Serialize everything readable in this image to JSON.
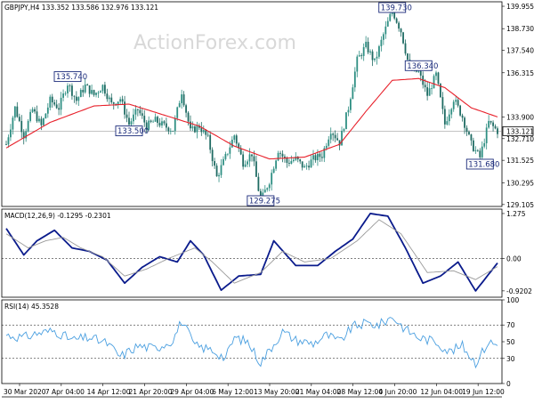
{
  "colors": {
    "bull": "#2f8f83",
    "bear": "#1f6b63",
    "ma": "#e8212b",
    "macd": "#0a1b8c",
    "signal": "#9a9a9a",
    "rsi": "#4a9fe0",
    "levels": "#000000"
  },
  "chart_data": [
    {
      "type": "candlestick",
      "title": "GBPJPY,H4  133.352 133.586 132.976 133.121",
      "watermark": "ActionForex.com",
      "ylim": [
        129.0,
        140.2
      ],
      "y_ticks": [
        "139.955",
        "138.730",
        "137.540",
        "136.315",
        "133.900",
        "132.710",
        "131.525",
        "130.295",
        "129.105"
      ],
      "last_price": "133.121",
      "last_price_value": 133.121,
      "annotations": [
        {
          "label": "139.730",
          "value": 139.73
        },
        {
          "label": "135.740",
          "value": 135.74
        },
        {
          "label": "136.340",
          "value": 136.34
        },
        {
          "label": "133.500",
          "value": 133.5
        },
        {
          "label": "131.680",
          "value": 131.68
        },
        {
          "label": "129.275",
          "value": 129.275
        }
      ],
      "path": [
        [
          0,
          132.4
        ],
        [
          4,
          134.4
        ],
        [
          8,
          132.9
        ],
        [
          12,
          134.3
        ],
        [
          16,
          133.4
        ],
        [
          20,
          134.8
        ],
        [
          24,
          134.4
        ],
        [
          28,
          135.74
        ],
        [
          32,
          134.8
        ],
        [
          36,
          135.6
        ],
        [
          40,
          135.1
        ],
        [
          44,
          135.6
        ],
        [
          48,
          134.6
        ],
        [
          52,
          134.9
        ],
        [
          56,
          133.5
        ],
        [
          60,
          134.3
        ],
        [
          64,
          133.4
        ],
        [
          68,
          133.7
        ],
        [
          72,
          133.4
        ],
        [
          76,
          133.2
        ],
        [
          80,
          135.3
        ],
        [
          84,
          133.1
        ],
        [
          88,
          133.4
        ],
        [
          92,
          132.7
        ],
        [
          96,
          130.6
        ],
        [
          100,
          131.7
        ],
        [
          104,
          132.9
        ],
        [
          108,
          131.4
        ],
        [
          112,
          131.9
        ],
        [
          116,
          129.275
        ],
        [
          120,
          130.4
        ],
        [
          124,
          132.1
        ],
        [
          128,
          131.4
        ],
        [
          132,
          131.6
        ],
        [
          136,
          131.1
        ],
        [
          140,
          131.6
        ],
        [
          144,
          131.8
        ],
        [
          148,
          133.2
        ],
        [
          152,
          132.5
        ],
        [
          156,
          134.4
        ],
        [
          160,
          137.0
        ],
        [
          164,
          137.8
        ],
        [
          168,
          136.9
        ],
        [
          172,
          138.4
        ],
        [
          176,
          139.73
        ],
        [
          180,
          138.6
        ],
        [
          184,
          136.5
        ],
        [
          188,
          136.34
        ],
        [
          192,
          135.1
        ],
        [
          196,
          136.2
        ],
        [
          200,
          133.5
        ],
        [
          204,
          134.9
        ],
        [
          208,
          133.9
        ],
        [
          212,
          132.4
        ],
        [
          216,
          131.68
        ],
        [
          220,
          133.6
        ],
        [
          224,
          133.121
        ]
      ],
      "ma_path": [
        [
          0,
          132.2
        ],
        [
          20,
          133.6
        ],
        [
          40,
          134.5
        ],
        [
          56,
          134.6
        ],
        [
          72,
          134.0
        ],
        [
          88,
          133.4
        ],
        [
          104,
          132.3
        ],
        [
          120,
          131.6
        ],
        [
          136,
          131.7
        ],
        [
          152,
          132.4
        ],
        [
          164,
          134.2
        ],
        [
          176,
          135.9
        ],
        [
          188,
          136.0
        ],
        [
          200,
          135.5
        ],
        [
          212,
          134.4
        ],
        [
          224,
          133.9
        ]
      ]
    },
    {
      "type": "line",
      "title": "MACD(12,26,9) -0.1295 -0.2301",
      "ylim": [
        -1.1,
        1.4
      ],
      "y_ticks": [
        "1.275",
        "0.00",
        "-0.9202"
      ],
      "y_tick_values": [
        1.275,
        0.0,
        -0.9202
      ],
      "series": [
        {
          "name": "MACD",
          "points": [
            [
              0,
              0.85
            ],
            [
              8,
              0.1
            ],
            [
              14,
              0.5
            ],
            [
              22,
              0.8
            ],
            [
              30,
              0.3
            ],
            [
              38,
              0.2
            ],
            [
              46,
              -0.05
            ],
            [
              54,
              -0.7
            ],
            [
              62,
              -0.25
            ],
            [
              70,
              0.05
            ],
            [
              78,
              -0.1
            ],
            [
              84,
              0.5
            ],
            [
              90,
              0.1
            ],
            [
              98,
              -0.9
            ],
            [
              106,
              -0.5
            ],
            [
              116,
              -0.45
            ],
            [
              122,
              0.5
            ],
            [
              132,
              -0.2
            ],
            [
              142,
              -0.2
            ],
            [
              150,
              0.2
            ],
            [
              158,
              0.55
            ],
            [
              166,
              1.275
            ],
            [
              174,
              1.2
            ],
            [
              182,
              0.3
            ],
            [
              190,
              -0.7
            ],
            [
              198,
              -0.5
            ],
            [
              206,
              -0.1
            ],
            [
              214,
              -0.9202
            ],
            [
              224,
              -0.1295
            ]
          ]
        },
        {
          "name": "Signal",
          "points": [
            [
              0,
              0.7
            ],
            [
              10,
              0.3
            ],
            [
              18,
              0.5
            ],
            [
              26,
              0.6
            ],
            [
              34,
              0.3
            ],
            [
              44,
              0.05
            ],
            [
              54,
              -0.5
            ],
            [
              64,
              -0.3
            ],
            [
              74,
              0.0
            ],
            [
              86,
              0.3
            ],
            [
              94,
              -0.1
            ],
            [
              104,
              -0.7
            ],
            [
              116,
              -0.4
            ],
            [
              126,
              0.2
            ],
            [
              136,
              -0.1
            ],
            [
              148,
              0.0
            ],
            [
              160,
              0.5
            ],
            [
              170,
              1.1
            ],
            [
              180,
              0.7
            ],
            [
              192,
              -0.4
            ],
            [
              204,
              -0.35
            ],
            [
              214,
              -0.6
            ],
            [
              224,
              -0.2301
            ]
          ]
        }
      ]
    },
    {
      "type": "line",
      "title": "RSI(14) 45.3528",
      "ylim": [
        0,
        100
      ],
      "y_ticks": [
        "100",
        "70",
        "50",
        "30",
        "0"
      ],
      "y_tick_values": [
        100,
        70,
        50,
        30,
        0
      ],
      "series": [
        {
          "name": "RSI",
          "points": [
            [
              0,
              58
            ],
            [
              8,
              55
            ],
            [
              14,
              60
            ],
            [
              22,
              63
            ],
            [
              30,
              52
            ],
            [
              38,
              55
            ],
            [
              46,
              48
            ],
            [
              52,
              32
            ],
            [
              60,
              45
            ],
            [
              68,
              42
            ],
            [
              76,
              52
            ],
            [
              80,
              75
            ],
            [
              86,
              45
            ],
            [
              94,
              40
            ],
            [
              100,
              30
            ],
            [
              104,
              55
            ],
            [
              110,
              50
            ],
            [
              116,
              25
            ],
            [
              120,
              40
            ],
            [
              126,
              62
            ],
            [
              132,
              52
            ],
            [
              140,
              48
            ],
            [
              146,
              58
            ],
            [
              152,
              50
            ],
            [
              158,
              68
            ],
            [
              164,
              72
            ],
            [
              170,
              70
            ],
            [
              176,
              80
            ],
            [
              182,
              65
            ],
            [
              188,
              55
            ],
            [
              196,
              50
            ],
            [
              202,
              38
            ],
            [
              208,
              45
            ],
            [
              214,
              25
            ],
            [
              220,
              50
            ],
            [
              224,
              45.3528
            ]
          ]
        }
      ]
    }
  ],
  "x_axis_labels": [
    "30 Mar 2020",
    "7 Apr 04:00",
    "14 Apr 12:00",
    "21 Apr 20:00",
    "29 Apr 04:00",
    "6 May 12:00",
    "13 May 20:00",
    "21 May 04:00",
    "28 May 12:00",
    "4 Jun 20:00",
    "12 Jun 04:00",
    "19 Jun 12:00"
  ]
}
